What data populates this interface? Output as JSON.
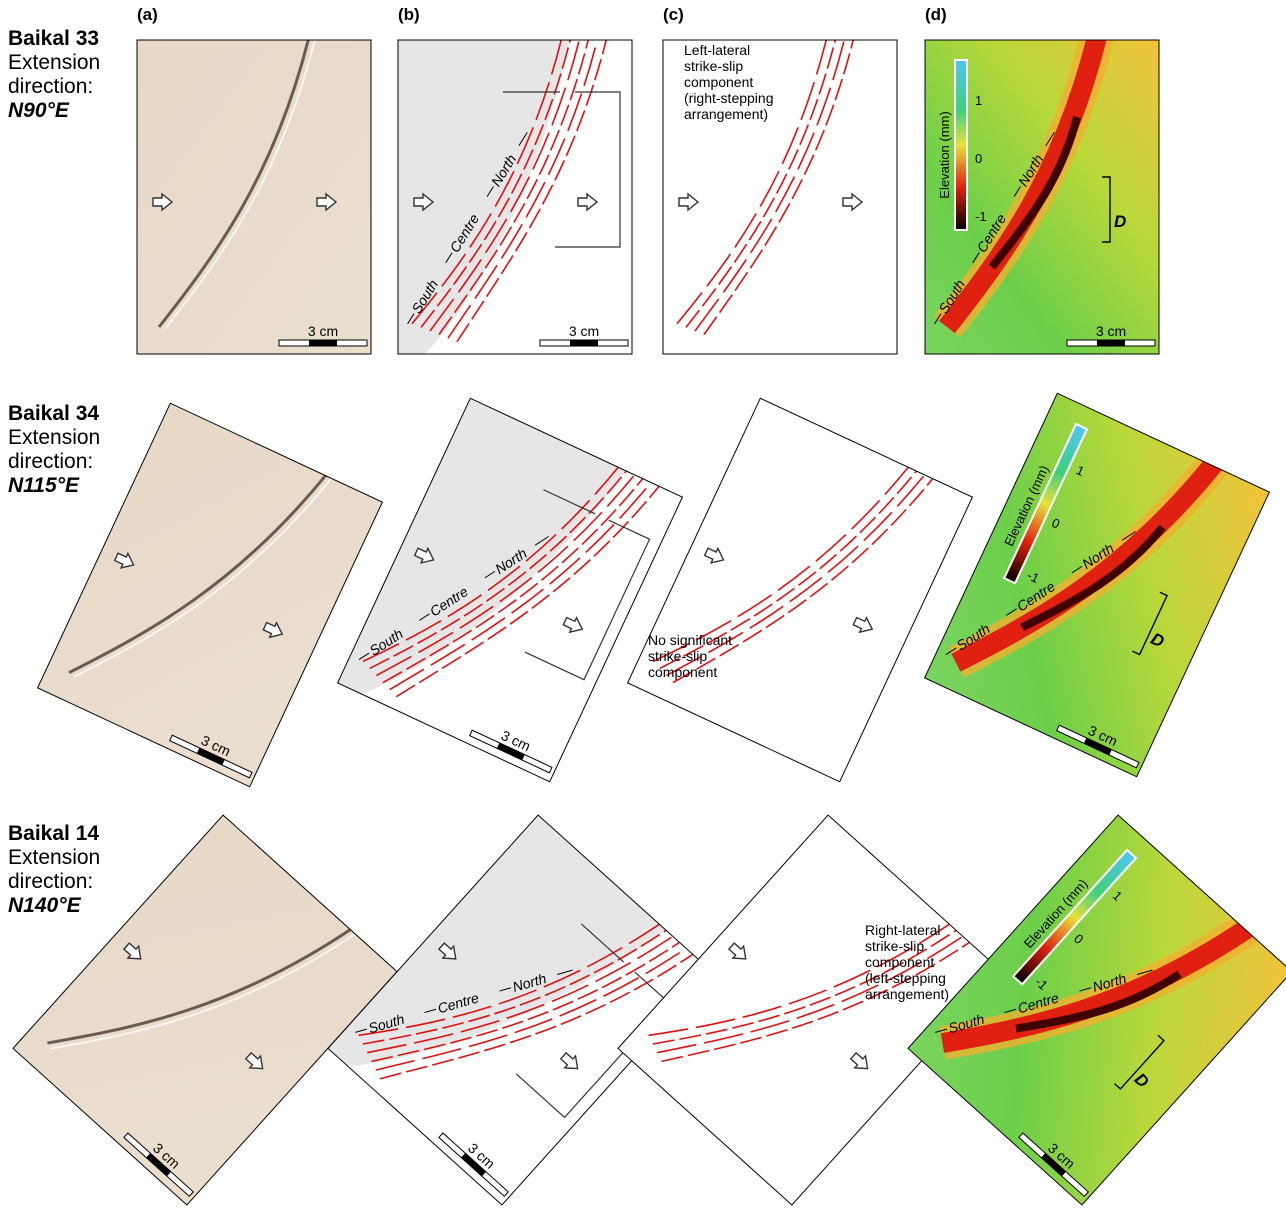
{
  "panel_labels": [
    "(a)",
    "(b)",
    "(c)",
    "(d)"
  ],
  "scale_bar": "3 cm",
  "zones": [
    "South",
    "Centre",
    "North"
  ],
  "domain_label": "D",
  "colorbar": {
    "title": "Elevation (mm)",
    "ticks": [
      1,
      0,
      -1
    ]
  },
  "rows": [
    {
      "name": "Baikal 33",
      "label_lines": [
        "Extension",
        "direction:"
      ],
      "direction": "N90°E",
      "annotation": [
        "Left-lateral",
        "strike-slip",
        "component",
        "(right-stepping",
        "arrangement)"
      ]
    },
    {
      "name": "Baikal 34",
      "label_lines": [
        "Extension",
        "direction:"
      ],
      "direction": "N115°E",
      "annotation": [
        "No significant",
        "strike-slip",
        "component"
      ]
    },
    {
      "name": "Baikal 14",
      "label_lines": [
        "Extension",
        "direction:"
      ],
      "direction": "N140°E",
      "annotation": [
        "Right-lateral",
        "strike-slip",
        "component",
        "(left-stepping",
        "arrangement)"
      ]
    }
  ]
}
